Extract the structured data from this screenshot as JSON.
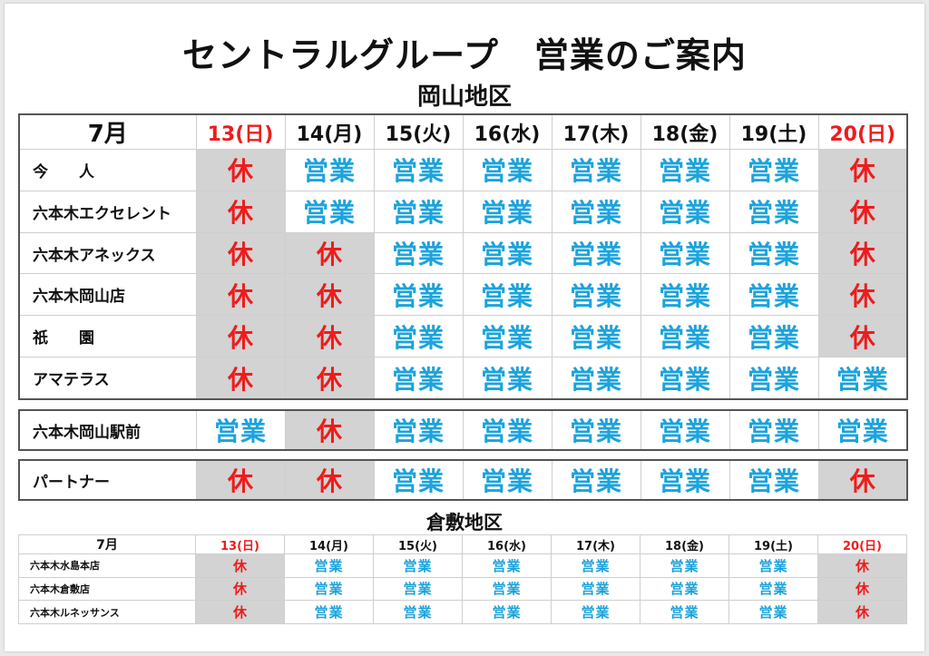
{
  "title": "セントラルグループ　営業のご案内",
  "okayama": {
    "region": "岡山地区",
    "header": {
      "month": "7月",
      "days": [
        {
          "label": "13(日)",
          "holiday": true
        },
        {
          "label": "14(月)",
          "holiday": false
        },
        {
          "label": "15(火)",
          "holiday": false
        },
        {
          "label": "16(水)",
          "holiday": false
        },
        {
          "label": "17(木)",
          "holiday": false
        },
        {
          "label": "18(金)",
          "holiday": false
        },
        {
          "label": "19(土)",
          "holiday": false
        },
        {
          "label": "20(日)",
          "holiday": true
        }
      ]
    },
    "stores": [
      {
        "name": "今　　人",
        "status": [
          "休",
          "営業",
          "営業",
          "営業",
          "営業",
          "営業",
          "営業",
          "休"
        ]
      },
      {
        "name": "六本木エクセレント",
        "status": [
          "休",
          "営業",
          "営業",
          "営業",
          "営業",
          "営業",
          "営業",
          "休"
        ]
      },
      {
        "name": "六本木アネックス",
        "status": [
          "休",
          "休",
          "営業",
          "営業",
          "営業",
          "営業",
          "営業",
          "休"
        ]
      },
      {
        "name": "六本木岡山店",
        "status": [
          "休",
          "休",
          "営業",
          "営業",
          "営業",
          "営業",
          "営業",
          "休"
        ]
      },
      {
        "name": "祇　　園",
        "status": [
          "休",
          "休",
          "営業",
          "営業",
          "営業",
          "営業",
          "営業",
          "休"
        ]
      },
      {
        "name": "アマテラス",
        "status": [
          "休",
          "休",
          "営業",
          "営業",
          "営業",
          "営業",
          "営業",
          "営業"
        ]
      }
    ],
    "ekimae": {
      "name": "六本木岡山駅前",
      "status": [
        "営業",
        "休",
        "営業",
        "営業",
        "営業",
        "営業",
        "営業",
        "営業"
      ]
    },
    "partner": {
      "name": "パートナー",
      "status": [
        "休",
        "休",
        "営業",
        "営業",
        "営業",
        "営業",
        "営業",
        "休"
      ]
    }
  },
  "kurashiki": {
    "region": "倉敷地区",
    "header": {
      "month": "7月",
      "days": [
        {
          "label": "13(日)",
          "holiday": true
        },
        {
          "label": "14(月)",
          "holiday": false
        },
        {
          "label": "15(火)",
          "holiday": false
        },
        {
          "label": "16(水)",
          "holiday": false
        },
        {
          "label": "17(木)",
          "holiday": false
        },
        {
          "label": "18(金)",
          "holiday": false
        },
        {
          "label": "19(土)",
          "holiday": false
        },
        {
          "label": "20(日)",
          "holiday": true
        }
      ]
    },
    "stores": [
      {
        "name": "六本木水島本店",
        "status": [
          "休",
          "営業",
          "営業",
          "営業",
          "営業",
          "営業",
          "営業",
          "休"
        ]
      },
      {
        "name": "六本木倉敷店",
        "status": [
          "休",
          "営業",
          "営業",
          "営業",
          "営業",
          "営業",
          "営業",
          "休"
        ]
      },
      {
        "name": "六本木ルネッサンス",
        "status": [
          "休",
          "営業",
          "営業",
          "営業",
          "営業",
          "営業",
          "営業",
          "休"
        ]
      }
    ]
  },
  "colors": {
    "open": "#1ca3dc",
    "closed": "#ee1c1c",
    "closed_bg": "#d3d3d3",
    "holiday_header": "#ee1c1c"
  }
}
